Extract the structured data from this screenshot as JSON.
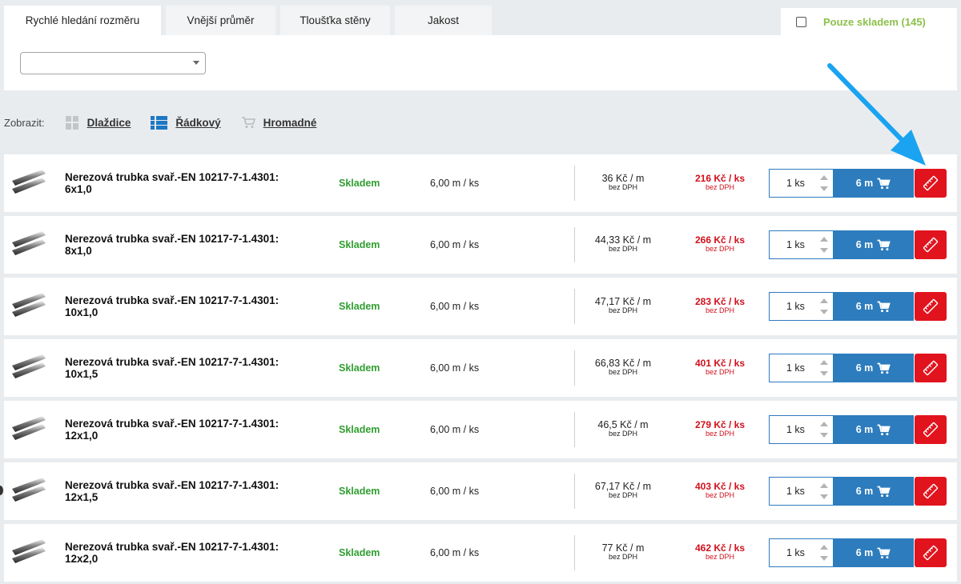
{
  "tabs": [
    {
      "label": "Rychlé hledání rozměru",
      "active": true
    },
    {
      "label": "Vnější průměr"
    },
    {
      "label": "Tloušťka stěny"
    },
    {
      "label": "Jakost"
    }
  ],
  "stock_filter": {
    "label": "Pouze skladem (145)",
    "checked": false
  },
  "search_select": {
    "value": ""
  },
  "view": {
    "label": "Zobrazit:",
    "options": [
      {
        "label": "Dlaždice",
        "icon": "tiles-icon"
      },
      {
        "label": "Řádkový",
        "icon": "rows-icon",
        "active": true
      },
      {
        "label": "Hromadné",
        "icon": "cart-icon"
      }
    ]
  },
  "colors": {
    "accent_blue": "#2d7cbd",
    "cut_red": "#e1141e",
    "stock_green": "#2f9e2f",
    "price_red": "#d0101b",
    "filter_green": "#8cc04b",
    "arrow": "#1aa3f0"
  },
  "products": [
    {
      "name": "Nerezová trubka svař.-EN 10217-7-1.4301:",
      "size": "6x1,0",
      "availability": "Skladem",
      "length": "6,00 m / ks",
      "price_per_m": "36 Kč / m",
      "price_per_m_note": "bez DPH",
      "price_per_piece": "216 Kč / ks",
      "price_per_piece_note": "bez DPH",
      "quantity": "1 ks",
      "cart_label": "6 m"
    },
    {
      "name": "Nerezová trubka svař.-EN 10217-7-1.4301:",
      "size": "8x1,0",
      "availability": "Skladem",
      "length": "6,00 m / ks",
      "price_per_m": "44,33 Kč / m",
      "price_per_m_note": "bez DPH",
      "price_per_piece": "266 Kč / ks",
      "price_per_piece_note": "bez DPH",
      "quantity": "1 ks",
      "cart_label": "6 m"
    },
    {
      "name": "Nerezová trubka svař.-EN 10217-7-1.4301:",
      "size": "10x1,0",
      "availability": "Skladem",
      "length": "6,00 m / ks",
      "price_per_m": "47,17 Kč / m",
      "price_per_m_note": "bez DPH",
      "price_per_piece": "283 Kč / ks",
      "price_per_piece_note": "bez DPH",
      "quantity": "1 ks",
      "cart_label": "6 m"
    },
    {
      "name": "Nerezová trubka svař.-EN 10217-7-1.4301:",
      "size": "10x1,5",
      "availability": "Skladem",
      "length": "6,00 m / ks",
      "price_per_m": "66,83 Kč / m",
      "price_per_m_note": "bez DPH",
      "price_per_piece": "401 Kč / ks",
      "price_per_piece_note": "bez DPH",
      "quantity": "1 ks",
      "cart_label": "6 m"
    },
    {
      "name": "Nerezová trubka svař.-EN 10217-7-1.4301:",
      "size": "12x1,0",
      "availability": "Skladem",
      "length": "6,00 m / ks",
      "price_per_m": "46,5 Kč / m",
      "price_per_m_note": "bez DPH",
      "price_per_piece": "279 Kč / ks",
      "price_per_piece_note": "bez DPH",
      "quantity": "1 ks",
      "cart_label": "6 m"
    },
    {
      "name": "Nerezová trubka svař.-EN 10217-7-1.4301:",
      "size": "12x1,5",
      "availability": "Skladem",
      "length": "6,00 m / ks",
      "price_per_m": "67,17 Kč / m",
      "price_per_m_note": "bez DPH",
      "price_per_piece": "403 Kč / ks",
      "price_per_piece_note": "bez DPH",
      "quantity": "1 ks",
      "cart_label": "6 m"
    },
    {
      "name": "Nerezová trubka svař.-EN 10217-7-1.4301:",
      "size": "12x2,0",
      "availability": "Skladem",
      "length": "6,00 m / ks",
      "price_per_m": "77 Kč / m",
      "price_per_m_note": "bez DPH",
      "price_per_piece": "462 Kč / ks",
      "price_per_piece_note": "bez DPH",
      "quantity": "1 ks",
      "cart_label": "6 m"
    }
  ]
}
